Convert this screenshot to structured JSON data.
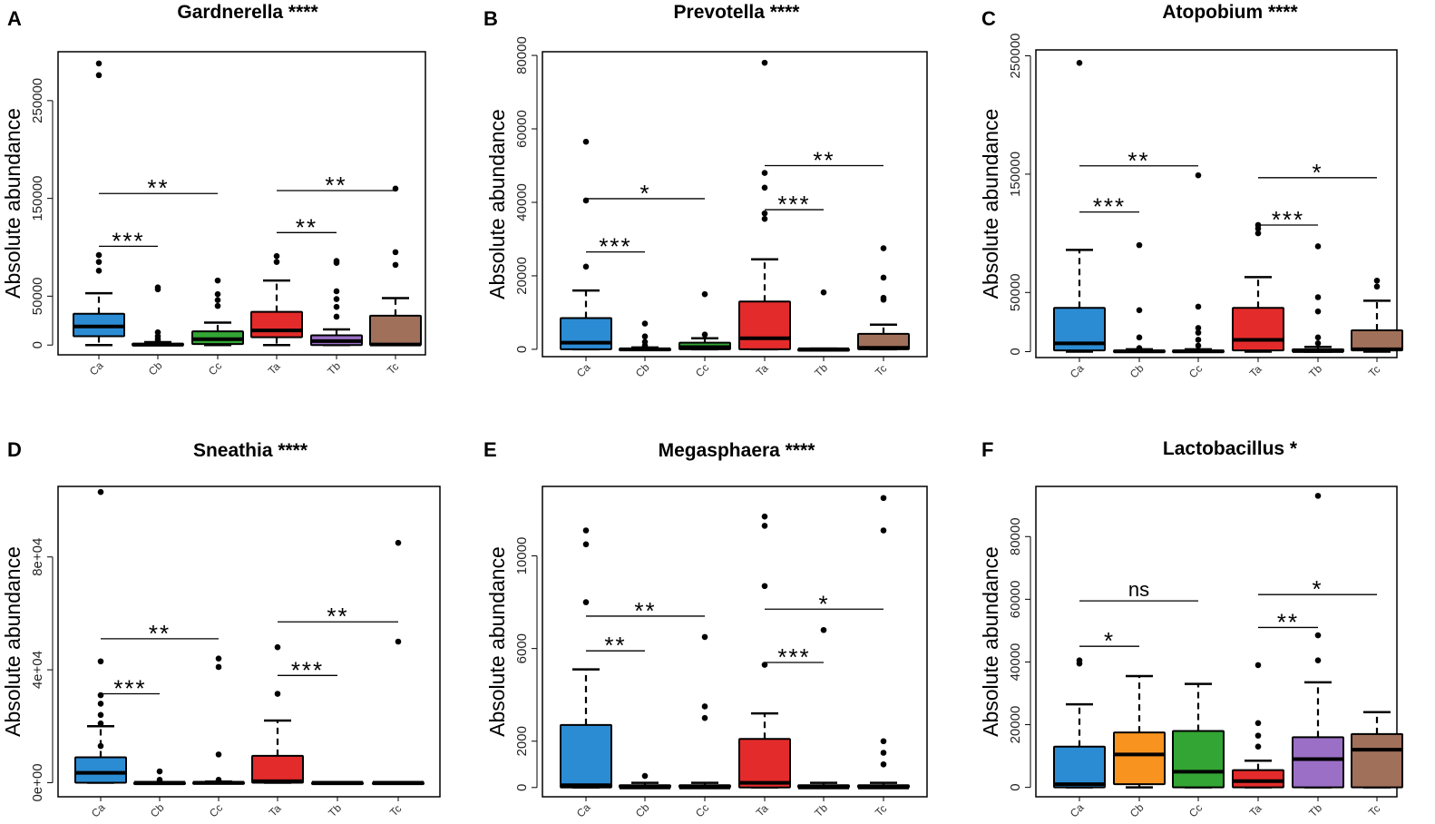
{
  "figure": {
    "colors": {
      "Ca": "#2b8cd4",
      "Cb": "#f7931e",
      "Cc": "#33a534",
      "Ta": "#e32b2b",
      "Tb": "#9b6fc6",
      "Tc": "#a1705a"
    }
  },
  "chart_data": [
    {
      "panel": "A",
      "type": "box",
      "title": "Gardnerella ****",
      "ylabel": "Absolute abundance",
      "xlabel": "",
      "ylim": [
        -10000,
        300000
      ],
      "yticks": [
        0,
        50000,
        150000,
        250000
      ],
      "ytick_labels": [
        "0",
        "50000",
        "150000",
        "250000"
      ],
      "categories": [
        "Ca",
        "Cb",
        "Cc",
        "Ta",
        "Tb",
        "Tc"
      ],
      "boxes": [
        {
          "min": 0,
          "q1": 9000,
          "median": 19000,
          "q3": 32000,
          "max": 53000,
          "outliers": [
            76000,
            85000,
            92000,
            276000,
            288000
          ]
        },
        {
          "min": 0,
          "q1": 0,
          "median": 300,
          "q3": 1500,
          "max": 3000,
          "outliers": [
            4000,
            6000,
            9000,
            13000,
            57000,
            59000
          ]
        },
        {
          "min": 0,
          "q1": 1000,
          "median": 6000,
          "q3": 14000,
          "max": 23000,
          "outliers": [
            40000,
            46000,
            52000,
            66000
          ]
        },
        {
          "min": 0,
          "q1": 8000,
          "median": 15000,
          "q3": 34000,
          "max": 66000,
          "outliers": [
            85000,
            91000
          ]
        },
        {
          "min": 0,
          "q1": 0,
          "median": 4000,
          "q3": 10000,
          "max": 16000,
          "outliers": [
            29000,
            39000,
            47000,
            55000,
            84000,
            86000
          ]
        },
        {
          "min": 0,
          "q1": 0,
          "median": 500,
          "q3": 30000,
          "max": 48000,
          "outliers": [
            82000,
            95000,
            160000
          ]
        }
      ],
      "comparisons": [
        {
          "from": "Ca",
          "to": "Cb",
          "value": 101000,
          "label": "***"
        },
        {
          "from": "Ca",
          "to": "Cc",
          "value": 155000,
          "label": "**"
        },
        {
          "from": "Ta",
          "to": "Tb",
          "value": 115000,
          "label": "**"
        },
        {
          "from": "Ta",
          "to": "Tc",
          "value": 158000,
          "label": "**"
        }
      ]
    },
    {
      "panel": "B",
      "type": "box",
      "title": "Prevotella ****",
      "ylabel": "Absolute abundance",
      "xlabel": "",
      "ylim": [
        -2000,
        81000
      ],
      "yticks": [
        0,
        20000,
        40000,
        60000,
        80000
      ],
      "ytick_labels": [
        "0",
        "20000",
        "40000",
        "60000",
        "80000"
      ],
      "categories": [
        "Ca",
        "Cb",
        "Cc",
        "Ta",
        "Tb",
        "Tc"
      ],
      "boxes": [
        {
          "min": 0,
          "q1": 0,
          "median": 1800,
          "q3": 8500,
          "max": 16000,
          "outliers": [
            22500,
            40500,
            56500
          ]
        },
        {
          "min": 0,
          "q1": 0,
          "median": 0,
          "q3": 200,
          "max": 500,
          "outliers": [
            1000,
            2000,
            3500,
            7000
          ]
        },
        {
          "min": 0,
          "q1": 0,
          "median": 600,
          "q3": 1800,
          "max": 3000,
          "outliers": [
            4000,
            15000
          ]
        },
        {
          "min": 0,
          "q1": 0,
          "median": 3000,
          "q3": 13000,
          "max": 24500,
          "outliers": [
            35500,
            37000,
            44000,
            48000,
            78000
          ]
        },
        {
          "min": 0,
          "q1": 0,
          "median": 0,
          "q3": 100,
          "max": 200,
          "outliers": [
            15500
          ]
        },
        {
          "min": 0,
          "q1": 0,
          "median": 400,
          "q3": 4200,
          "max": 6700,
          "outliers": [
            13500,
            14000,
            19500,
            27500
          ]
        }
      ],
      "comparisons": [
        {
          "from": "Ca",
          "to": "Cb",
          "value": 26500,
          "label": "***"
        },
        {
          "from": "Ca",
          "to": "Cc",
          "value": 41000,
          "label": "*"
        },
        {
          "from": "Ta",
          "to": "Tb",
          "value": 38000,
          "label": "***"
        },
        {
          "from": "Ta",
          "to": "Tc",
          "value": 50000,
          "label": "**"
        }
      ]
    },
    {
      "panel": "C",
      "type": "box",
      "title": "Atopobium ****",
      "ylabel": "Absolute abundance",
      "xlabel": "",
      "ylim": [
        -5000,
        255000
      ],
      "yticks": [
        0,
        50000,
        150000,
        250000
      ],
      "ytick_labels": [
        "0",
        "50000",
        "150000",
        "250000"
      ],
      "categories": [
        "Ca",
        "Cb",
        "Cc",
        "Ta",
        "Tb",
        "Tc"
      ],
      "boxes": [
        {
          "min": 0,
          "q1": 1000,
          "median": 7000,
          "q3": 37000,
          "max": 86000,
          "outliers": [
            244000
          ]
        },
        {
          "min": 0,
          "q1": 0,
          "median": 300,
          "q3": 1000,
          "max": 2000,
          "outliers": [
            3000,
            12000,
            35000,
            90000
          ]
        },
        {
          "min": 0,
          "q1": 0,
          "median": 300,
          "q3": 1000,
          "max": 2000,
          "outliers": [
            5000,
            10000,
            16000,
            20000,
            38000,
            149000
          ]
        },
        {
          "min": 0,
          "q1": 1000,
          "median": 10000,
          "q3": 37000,
          "max": 63000,
          "outliers": [
            100000,
            104000,
            107000
          ]
        },
        {
          "min": 0,
          "q1": 0,
          "median": 500,
          "q3": 2000,
          "max": 4000,
          "outliers": [
            7000,
            12000,
            34000,
            46000,
            89000
          ]
        },
        {
          "min": 0,
          "q1": 1000,
          "median": 2000,
          "q3": 18000,
          "max": 43000,
          "outliers": [
            55000,
            60000
          ]
        }
      ],
      "comparisons": [
        {
          "from": "Ca",
          "to": "Cb",
          "value": 118000,
          "label": "***"
        },
        {
          "from": "Ca",
          "to": "Cc",
          "value": 157000,
          "label": "**"
        },
        {
          "from": "Ta",
          "to": "Tb",
          "value": 107000,
          "label": "***"
        },
        {
          "from": "Ta",
          "to": "Tc",
          "value": 147000,
          "label": "*"
        }
      ]
    },
    {
      "panel": "D",
      "type": "box",
      "title": "Sneathia ****",
      "ylabel": "Absolute abundance",
      "xlabel": "",
      "ylim": [
        -5000,
        105000
      ],
      "yticks": [
        0,
        40000,
        80000
      ],
      "ytick_labels": [
        "0e+00",
        "4e+04",
        "8e+04"
      ],
      "categories": [
        "Ca",
        "Cb",
        "Cc",
        "Ta",
        "Tb",
        "Tc"
      ],
      "boxes": [
        {
          "min": 0,
          "q1": 0,
          "median": 3500,
          "q3": 9000,
          "max": 20000,
          "outliers": [
            13000,
            21000,
            24000,
            28000,
            31000,
            43000,
            103000
          ]
        },
        {
          "min": 0,
          "q1": 0,
          "median": 0,
          "q3": 100,
          "max": 200,
          "outliers": [
            1000,
            4000
          ]
        },
        {
          "min": 0,
          "q1": 0,
          "median": 0,
          "q3": 200,
          "max": 400,
          "outliers": [
            1000,
            10000,
            41000,
            44000
          ]
        },
        {
          "min": 0,
          "q1": 0,
          "median": 500,
          "q3": 9500,
          "max": 22000,
          "outliers": [
            31500,
            48000
          ]
        },
        {
          "min": 0,
          "q1": 0,
          "median": 0,
          "q3": 100,
          "max": 200,
          "outliers": []
        },
        {
          "min": 0,
          "q1": 0,
          "median": 0,
          "q3": 100,
          "max": 200,
          "outliers": [
            50000,
            85000
          ]
        }
      ],
      "comparisons": [
        {
          "from": "Ca",
          "to": "Cb",
          "value": 31500,
          "label": "***"
        },
        {
          "from": "Ca",
          "to": "Cc",
          "value": 51000,
          "label": "**"
        },
        {
          "from": "Ta",
          "to": "Tb",
          "value": 38000,
          "label": "***"
        },
        {
          "from": "Ta",
          "to": "Tc",
          "value": 57000,
          "label": "**"
        }
      ]
    },
    {
      "panel": "E",
      "type": "box",
      "title": "Megasphaera ****",
      "ylabel": "Absolute abundance",
      "xlabel": "",
      "ylim": [
        -400,
        13000
      ],
      "yticks": [
        0,
        2000,
        6000,
        10000
      ],
      "ytick_labels": [
        "0",
        "2000",
        "6000",
        "10000"
      ],
      "categories": [
        "Ca",
        "Cb",
        "Cc",
        "Ta",
        "Tb",
        "Tc"
      ],
      "boxes": [
        {
          "min": 0,
          "q1": 0,
          "median": 100,
          "q3": 2700,
          "max": 5100,
          "outliers": [
            8000,
            10500,
            11100
          ]
        },
        {
          "min": 0,
          "q1": 0,
          "median": 0,
          "q3": 100,
          "max": 200,
          "outliers": [
            500
          ]
        },
        {
          "min": 0,
          "q1": 0,
          "median": 0,
          "q3": 100,
          "max": 200,
          "outliers": [
            3000,
            3500,
            6500
          ]
        },
        {
          "min": 0,
          "q1": 0,
          "median": 200,
          "q3": 2100,
          "max": 3200,
          "outliers": [
            5300,
            8700,
            11300,
            11700
          ]
        },
        {
          "min": 0,
          "q1": 0,
          "median": 0,
          "q3": 100,
          "max": 200,
          "outliers": [
            6800
          ]
        },
        {
          "min": 0,
          "q1": 0,
          "median": 0,
          "q3": 100,
          "max": 200,
          "outliers": [
            1000,
            1500,
            2000,
            11100,
            12500
          ]
        }
      ],
      "comparisons": [
        {
          "from": "Ca",
          "to": "Cb",
          "value": 5900,
          "label": "**"
        },
        {
          "from": "Ca",
          "to": "Cc",
          "value": 7400,
          "label": "**"
        },
        {
          "from": "Ta",
          "to": "Tb",
          "value": 5400,
          "label": "***"
        },
        {
          "from": "Ta",
          "to": "Tc",
          "value": 7700,
          "label": "*"
        }
      ]
    },
    {
      "panel": "F",
      "type": "box",
      "title": "Lactobacillus *",
      "ylabel": "Absolute abundance",
      "xlabel": "",
      "ylim": [
        -3000,
        96000
      ],
      "yticks": [
        0,
        20000,
        40000,
        60000,
        80000
      ],
      "ytick_labels": [
        "0",
        "20000",
        "40000",
        "60000",
        "80000"
      ],
      "categories": [
        "Ca",
        "Cb",
        "Cc",
        "Ta",
        "Tb",
        "Tc"
      ],
      "boxes": [
        {
          "min": 0,
          "q1": 0,
          "median": 1000,
          "q3": 13000,
          "max": 26500,
          "outliers": [
            39500,
            40500
          ]
        },
        {
          "min": 0,
          "q1": 1000,
          "median": 10500,
          "q3": 17500,
          "max": 35500,
          "outliers": []
        },
        {
          "min": 0,
          "q1": 0,
          "median": 5000,
          "q3": 18000,
          "max": 33000,
          "outliers": []
        },
        {
          "min": 0,
          "q1": 0,
          "median": 2000,
          "q3": 5500,
          "max": 8500,
          "outliers": [
            13000,
            16500,
            20500,
            39000
          ]
        },
        {
          "min": 0,
          "q1": 0,
          "median": 9000,
          "q3": 16000,
          "max": 33500,
          "outliers": [
            40500,
            48500,
            93000
          ]
        },
        {
          "min": 0,
          "q1": 0,
          "median": 12000,
          "q3": 17000,
          "max": 24000,
          "outliers": []
        }
      ],
      "comparisons": [
        {
          "from": "Ca",
          "to": "Cb",
          "value": 45000,
          "label": "*"
        },
        {
          "from": "Ca",
          "to": "Cc",
          "value": 59500,
          "label": "ns"
        },
        {
          "from": "Ta",
          "to": "Tb",
          "value": 51000,
          "label": "**"
        },
        {
          "from": "Ta",
          "to": "Tc",
          "value": 61500,
          "label": "*"
        }
      ]
    }
  ]
}
